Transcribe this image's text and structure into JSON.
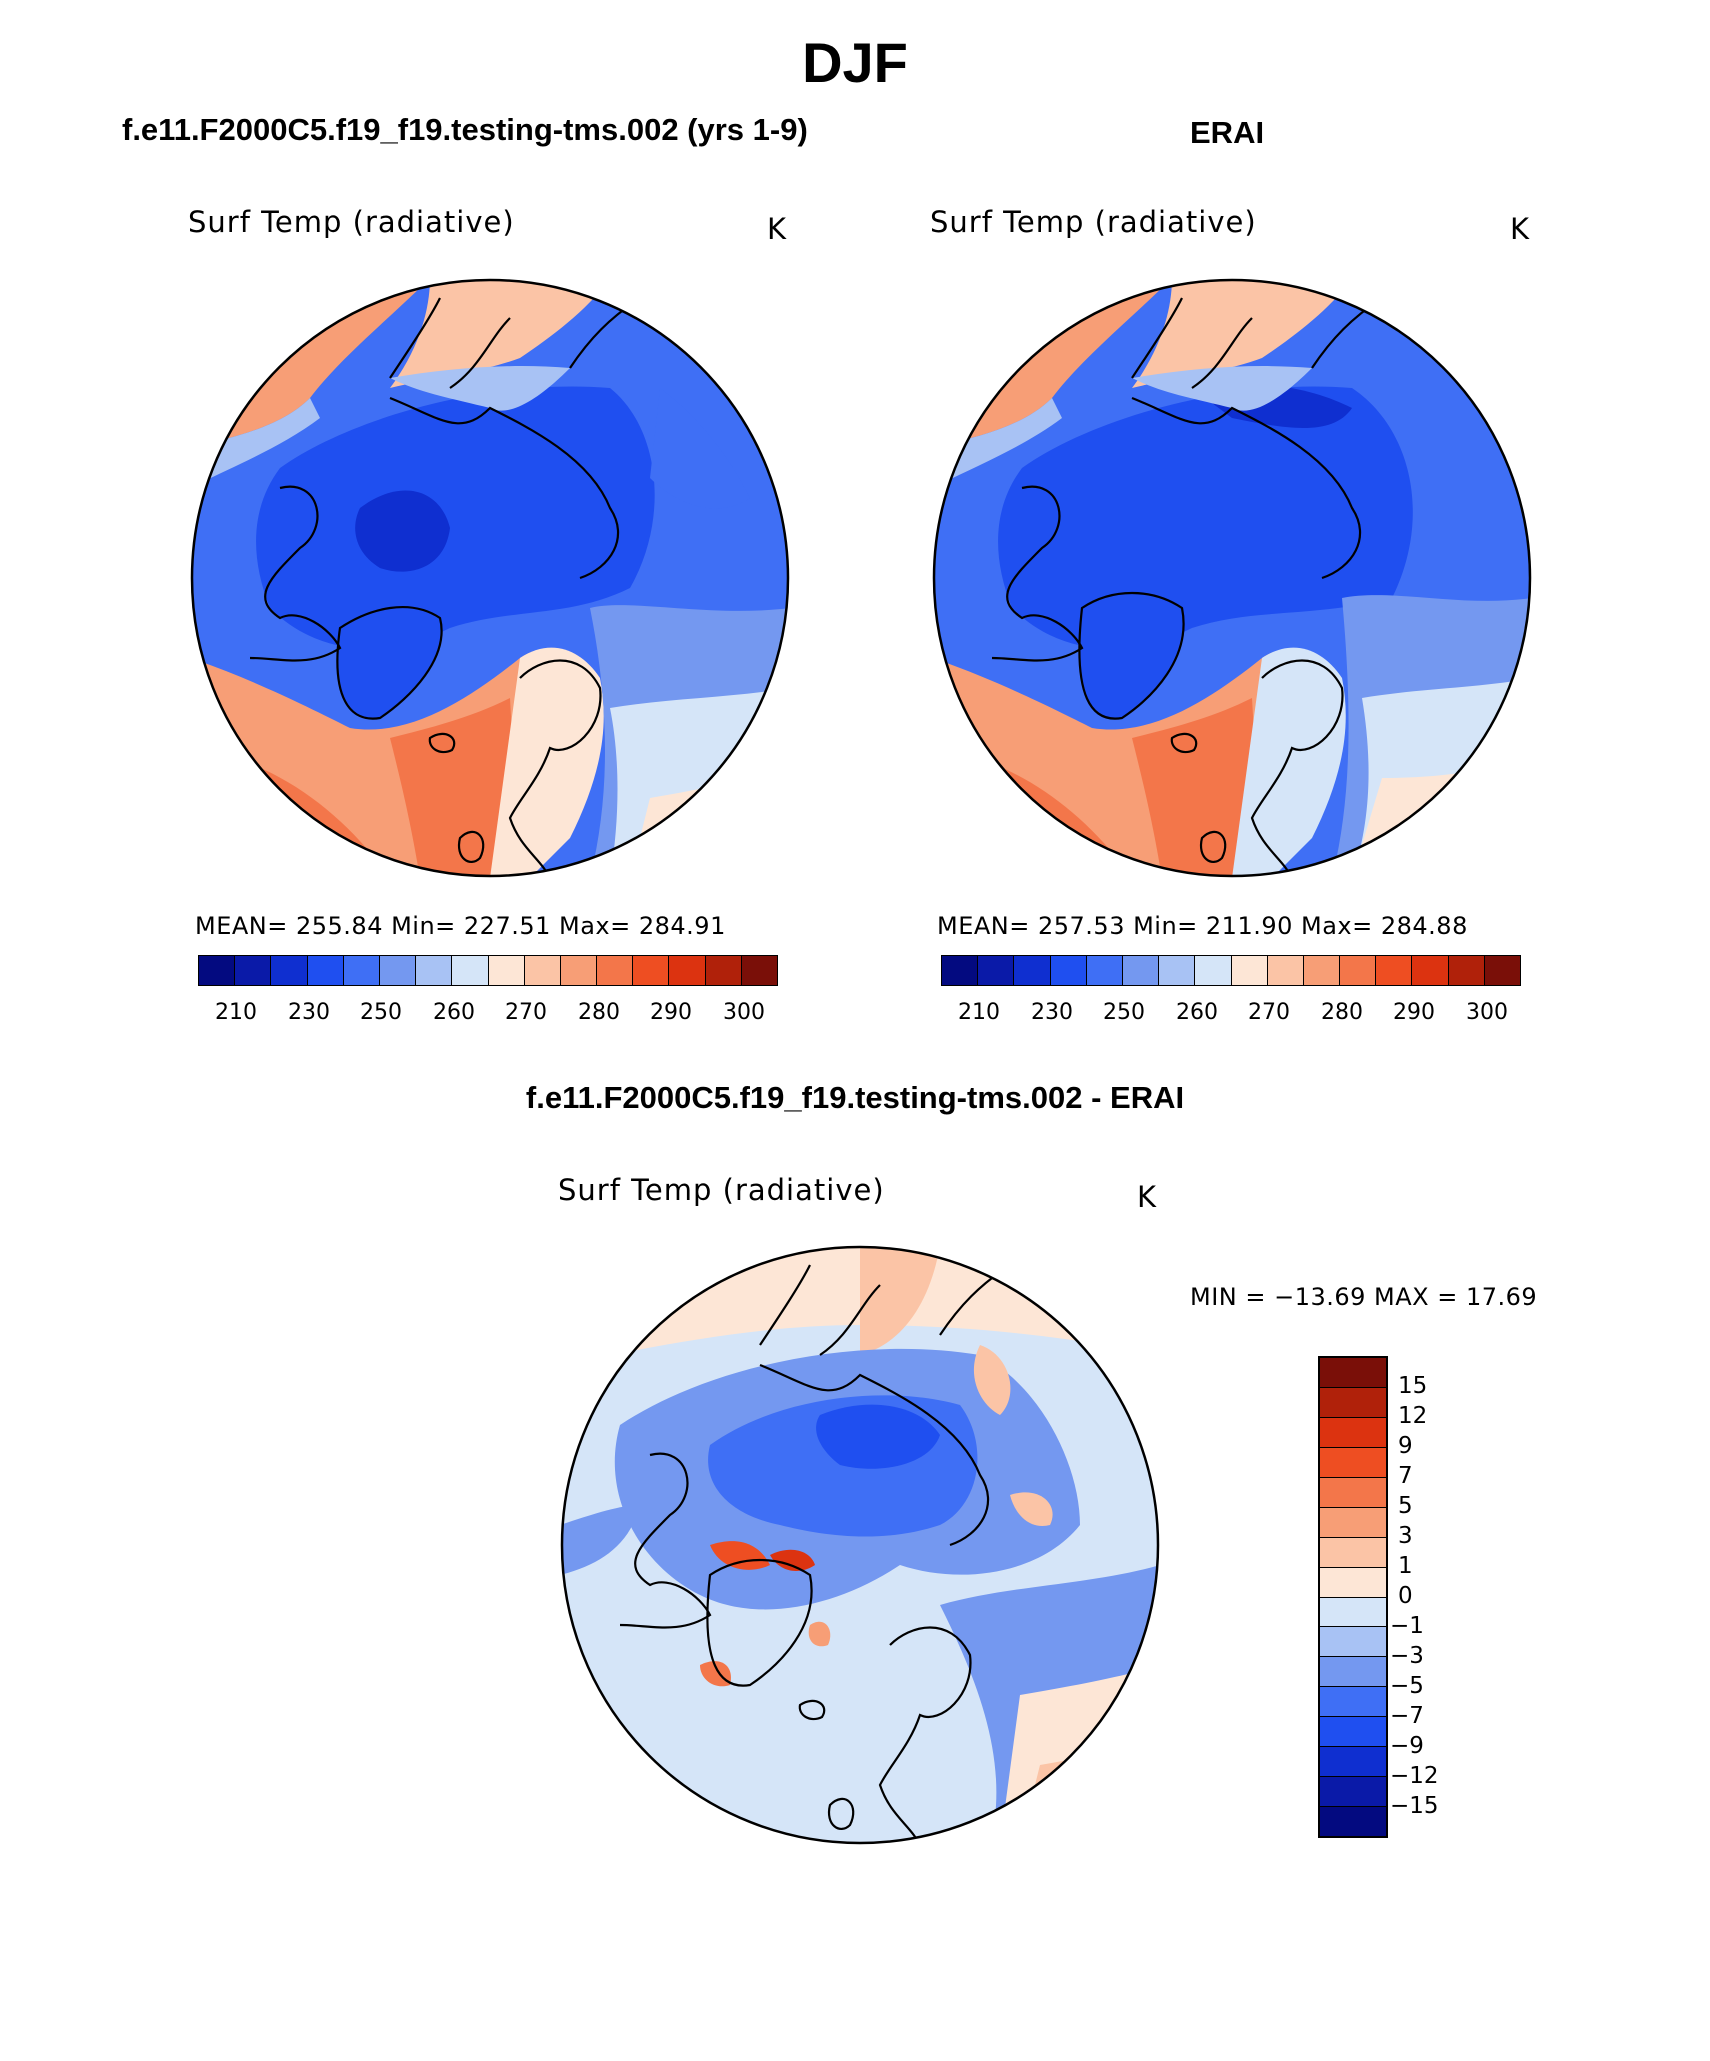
{
  "figure": {
    "title": "DJF"
  },
  "panels": {
    "model": {
      "heading": "f.e11.F2000C5.f19_f19.testing-tms.002 (yrs 1-9)",
      "variable": "Surf Temp (radiative)",
      "units": "K",
      "stats": "MEAN=  255.84    Min=  227.51    Max=  284.91"
    },
    "obs": {
      "heading": "ERAI",
      "variable": "Surf Temp (radiative)",
      "units": "K",
      "stats": "MEAN=  257.53    Min=  211.90    Max=  284.88"
    },
    "diff": {
      "heading": "f.e11.F2000C5.f19_f19.testing-tms.002 - ERAI",
      "variable": "Surf Temp (radiative)",
      "units": "K",
      "stats": "MIN  =  −13.69  MAX  =    17.69"
    }
  },
  "chart_data": [
    {
      "type": "heatmap",
      "title": "Surf Temp (radiative)",
      "subtitle": "f.e11.F2000C5.f19_f19.testing-tms.002 (yrs 1-9)",
      "projection": "north polar stereographic",
      "units": "K",
      "mean": 255.84,
      "min": 227.51,
      "max": 284.91,
      "colorbar_ticks": [
        "210",
        "230",
        "250",
        "260",
        "270",
        "280",
        "290",
        "300"
      ],
      "colorbar_colors": [
        "#030a80",
        "#0a1aa8",
        "#0f2fd0",
        "#1f4ff0",
        "#3f6ff5",
        "#7498f0",
        "#a8c2f4",
        "#d5e5f8",
        "#fde6d6",
        "#fbc4a6",
        "#f79e76",
        "#f3764a",
        "#ee4e22",
        "#dc3310",
        "#b0210a",
        "#7a0f08"
      ]
    },
    {
      "type": "heatmap",
      "title": "Surf Temp (radiative)",
      "subtitle": "ERAI",
      "projection": "north polar stereographic",
      "units": "K",
      "mean": 257.53,
      "min": 211.9,
      "max": 284.88,
      "colorbar_ticks": [
        "210",
        "230",
        "250",
        "260",
        "270",
        "280",
        "290",
        "300"
      ],
      "colorbar_colors": [
        "#030a80",
        "#0a1aa8",
        "#0f2fd0",
        "#1f4ff0",
        "#3f6ff5",
        "#7498f0",
        "#a8c2f4",
        "#d5e5f8",
        "#fde6d6",
        "#fbc4a6",
        "#f79e76",
        "#f3764a",
        "#ee4e22",
        "#dc3310",
        "#b0210a",
        "#7a0f08"
      ]
    },
    {
      "type": "heatmap",
      "title": "Surf Temp (radiative)",
      "subtitle": "f.e11.F2000C5.f19_f19.testing-tms.002 - ERAI",
      "projection": "north polar stereographic",
      "units": "K",
      "min": -13.69,
      "max": 17.69,
      "colorbar_ticks": [
        "15",
        "12",
        "9",
        "7",
        "5",
        "3",
        "1",
        "0",
        "−1",
        "−3",
        "−5",
        "−7",
        "−9",
        "−12",
        "−15"
      ],
      "colorbar_colors": [
        "#7a0f08",
        "#b0210a",
        "#dc3310",
        "#ee4e22",
        "#f3764a",
        "#f79e76",
        "#fbc4a6",
        "#fde6d6",
        "#d5e5f8",
        "#a8c2f4",
        "#7498f0",
        "#3f6ff5",
        "#1f4ff0",
        "#0f2fd0",
        "#0a1aa8",
        "#030a80"
      ]
    }
  ]
}
